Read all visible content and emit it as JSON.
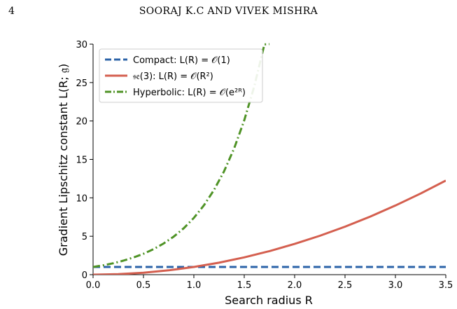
{
  "header": {
    "page_number": "4",
    "running_head": "SOORAJ K.C AND VIVEK MISHRA"
  },
  "chart_data": {
    "type": "line",
    "title": "",
    "xlabel": "Search radius R",
    "ylabel": "Gradient Lipschitz constant L(R; 𝔤)",
    "xlim": [
      0,
      3.5
    ],
    "ylim": [
      0,
      30
    ],
    "xticks": [
      "0.0",
      "0.5",
      "1.0",
      "1.5",
      "2.0",
      "2.5",
      "3.0",
      "3.5"
    ],
    "yticks": [
      "0",
      "5",
      "10",
      "15",
      "20",
      "25",
      "30"
    ],
    "grid": false,
    "legend_position": "top-left",
    "series": [
      {
        "name": "Compact: L(R) = 𝒪(1)",
        "color": "#2b63a8",
        "style": "dashed",
        "x": [
          0,
          0.5,
          1.0,
          1.5,
          2.0,
          2.5,
          3.0,
          3.5
        ],
        "y": [
          1,
          1,
          1,
          1,
          1,
          1,
          1,
          1
        ]
      },
      {
        "name": "𝔰𝔢(3): L(R) = 𝒪(R²)",
        "color": "#d45f4f",
        "style": "solid",
        "x": [
          0,
          0.25,
          0.5,
          0.75,
          1.0,
          1.25,
          1.5,
          1.75,
          2.0,
          2.25,
          2.5,
          2.75,
          3.0,
          3.25,
          3.5
        ],
        "y": [
          0,
          0.0625,
          0.25,
          0.5625,
          1.0,
          1.5625,
          2.25,
          3.0625,
          4.0,
          5.0625,
          6.25,
          7.5625,
          9.0,
          10.5625,
          12.25
        ]
      },
      {
        "name": "Hyperbolic: L(R) = 𝒪(e²ᴿ)",
        "color": "#4f9326",
        "style": "dashdot",
        "x": [
          0,
          0.1,
          0.2,
          0.3,
          0.4,
          0.5,
          0.6,
          0.7,
          0.8,
          0.9,
          1.0,
          1.1,
          1.2,
          1.3,
          1.4,
          1.5,
          1.6,
          1.7,
          1.75
        ],
        "y": [
          1.0,
          1.22,
          1.49,
          1.82,
          2.23,
          2.72,
          3.32,
          4.06,
          4.95,
          6.05,
          7.39,
          9.03,
          11.02,
          13.46,
          16.44,
          20.09,
          24.53,
          29.96,
          30.0
        ]
      }
    ]
  }
}
